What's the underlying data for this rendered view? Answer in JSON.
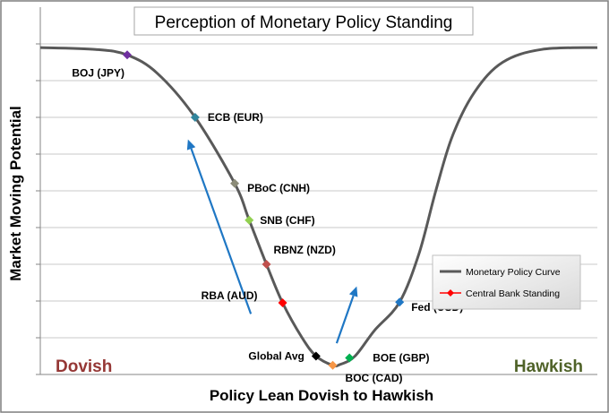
{
  "chart_data": {
    "type": "line",
    "title": "Perception of Monetary Policy Standing",
    "xlabel": "Policy Lean Dovish to Hawkish",
    "ylabel": "Market Moving Potential",
    "xlim": [
      0,
      100
    ],
    "ylim": [
      0,
      8
    ],
    "grid": {
      "horizontal": true,
      "vertical": false
    },
    "ends": {
      "left": "Dovish",
      "right": "Hawkish"
    },
    "end_colors": {
      "left": "#953735",
      "right": "#4f6228"
    },
    "legend": {
      "placement": "right",
      "entries": [
        {
          "label": "Monetary Policy Curve",
          "color": "#595959",
          "marker": "line"
        },
        {
          "label": "Central Bank Standing",
          "color": "#ff0000",
          "marker": "diamond"
        }
      ]
    },
    "curve": {
      "name": "Monetary Policy Curve",
      "color": "#595959",
      "points": [
        {
          "x": 0,
          "y": 8.9
        },
        {
          "x": 10,
          "y": 8.85
        },
        {
          "x": 15.6,
          "y": 8.7
        },
        {
          "x": 21,
          "y": 8.2
        },
        {
          "x": 27.8,
          "y": 7.0
        },
        {
          "x": 34.9,
          "y": 5.2
        },
        {
          "x": 37.5,
          "y": 4.2
        },
        {
          "x": 40.6,
          "y": 3.0
        },
        {
          "x": 43.5,
          "y": 1.95
        },
        {
          "x": 47,
          "y": 1.0
        },
        {
          "x": 49.5,
          "y": 0.5
        },
        {
          "x": 52.5,
          "y": 0.25
        },
        {
          "x": 53.8,
          "y": 0.27
        },
        {
          "x": 56.5,
          "y": 0.5
        },
        {
          "x": 60,
          "y": 1.2
        },
        {
          "x": 64.5,
          "y": 1.97
        },
        {
          "x": 68,
          "y": 3.3
        },
        {
          "x": 71,
          "y": 5.0
        },
        {
          "x": 74,
          "y": 6.5
        },
        {
          "x": 78,
          "y": 7.7
        },
        {
          "x": 83,
          "y": 8.5
        },
        {
          "x": 90,
          "y": 8.85
        },
        {
          "x": 100,
          "y": 8.9
        }
      ]
    },
    "banks": [
      {
        "label": "BOJ (JPY)",
        "x": 15.6,
        "y": 8.7,
        "color": "#7030a0"
      },
      {
        "label": "ECB (EUR)",
        "x": 27.8,
        "y": 7.0,
        "color": "#31859c"
      },
      {
        "label": "PBoC (CNH)",
        "x": 34.9,
        "y": 5.2,
        "color": "#8c8c78"
      },
      {
        "label": "SNB (CHF)",
        "x": 37.5,
        "y": 4.2,
        "color": "#92d050"
      },
      {
        "label": "RBNZ (NZD)",
        "x": 40.6,
        "y": 3.0,
        "color": "#c0504d"
      },
      {
        "label": "RBA (AUD)",
        "x": 43.5,
        "y": 1.95,
        "color": "#ff0000"
      },
      {
        "label": "Global Avg",
        "x": 49.5,
        "y": 0.5,
        "color": "#000000"
      },
      {
        "label": "BOC (CAD)",
        "x": 52.5,
        "y": 0.25,
        "color": "#f79646"
      },
      {
        "label": "BOE (GBP)",
        "x": 55.5,
        "y": 0.45,
        "color": "#00b050"
      },
      {
        "label": "Fed (USD)",
        "x": 64.5,
        "y": 1.97,
        "color": "#1f77c4"
      }
    ],
    "arrows": [
      {
        "from": {
          "x": 37.8,
          "y": 1.65
        },
        "to": {
          "x": 26.5,
          "y": 6.4
        },
        "color": "#1f77c4"
      },
      {
        "from": {
          "x": 53.2,
          "y": 0.85
        },
        "to": {
          "x": 56.8,
          "y": 2.4
        },
        "color": "#1f77c4"
      }
    ]
  }
}
